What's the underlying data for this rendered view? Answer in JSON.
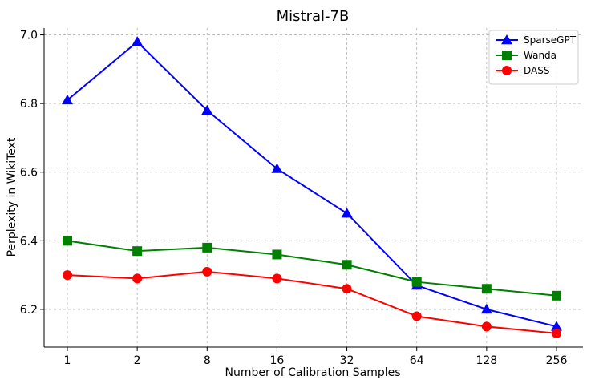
{
  "chart_data": {
    "type": "line",
    "title": "Mistral-7B",
    "xlabel": "Number of Calibration Samples",
    "ylabel": "Perplexity in WikiText",
    "categories": [
      "1",
      "2",
      "8",
      "16",
      "32",
      "64",
      "128",
      "256"
    ],
    "ylim": [
      6.09,
      7.02
    ],
    "yticks": [
      "6.2",
      "6.4",
      "6.6",
      "6.8",
      "7.0"
    ],
    "ytick_values": [
      6.2,
      6.4,
      6.6,
      6.8,
      7.0
    ],
    "grid": true,
    "legend_position": "top-right",
    "series": [
      {
        "name": "SparseGPT",
        "color": "#0000ff",
        "marker": "triangle",
        "values": [
          6.81,
          6.98,
          6.78,
          6.61,
          6.48,
          6.27,
          6.2,
          6.15
        ]
      },
      {
        "name": "Wanda",
        "color": "#008000",
        "marker": "square",
        "values": [
          6.4,
          6.37,
          6.38,
          6.36,
          6.33,
          6.28,
          6.26,
          6.24
        ]
      },
      {
        "name": "DASS",
        "color": "#ff0000",
        "marker": "circle",
        "values": [
          6.3,
          6.29,
          6.31,
          6.29,
          6.26,
          6.18,
          6.15,
          6.13
        ]
      }
    ]
  }
}
